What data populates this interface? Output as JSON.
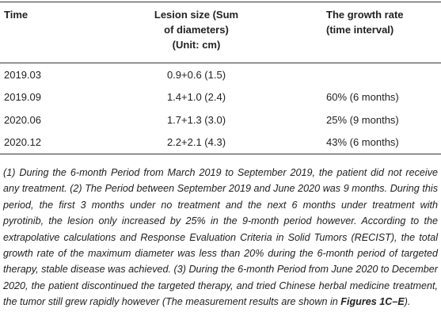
{
  "table": {
    "header": [
      [
        "Time"
      ],
      [
        "Lesion size (Sum",
        "of diameters)",
        "(Unit: cm)"
      ],
      [
        "The growth rate",
        "(time interval)"
      ]
    ],
    "rows": [
      [
        "2019.03",
        "0.9+0.6 (1.5)",
        ""
      ],
      [
        "2019.09",
        "1.4+1.0 (2.4)",
        "60% (6 months)"
      ],
      [
        "2020.06",
        "1.7+1.3 (3.0)",
        "25% (9 months)"
      ],
      [
        "2020.12",
        "2.2+2.1 (4.3)",
        "43% (6 months)"
      ]
    ]
  },
  "footnote": {
    "text_before": "(1) During the 6-month Period from March 2019 to September 2019, the patient did not receive any treatment. (2) The Period between September 2019 and June 2020 was 9 months. During this period, the first 3 months under no treatment and the next 6 months under treatment with pyrotinib, the lesion only increased by 25% in the 9-month period however. According to the extrapolative calculations and Response Evaluation Criteria in Solid Tumors (RECIST), the total growth rate of the maximum diameter was less than 20% during the 6-month period of targeted therapy, stable disease was achieved. (3) During the 6-month Period from June 2020 to December 2020, the patient discontinued the targeted therapy, and tried Chinese herbal medicine treatment, the tumor still grew rapidly however (The measurement results are shown in ",
    "emphasis": "Figures 1C–E",
    "text_after": ")."
  }
}
